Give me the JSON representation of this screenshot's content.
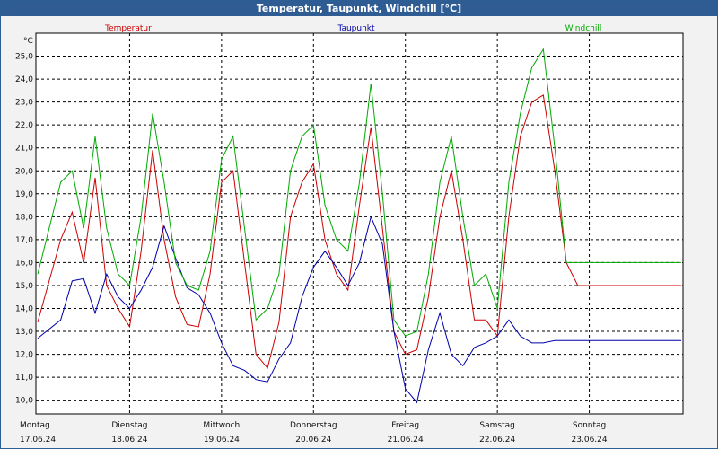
{
  "window": {
    "title": "Temperatur, Taupunkt, Windchill [°C]"
  },
  "chart_data": {
    "type": "line",
    "title": "Temperatur, Taupunkt, Windchill [°C]",
    "unit": "°C",
    "ylim": [
      9.4,
      26.0
    ],
    "yticks": [
      "10,0",
      "11,0",
      "12,0",
      "13,0",
      "14,0",
      "15,0",
      "16,0",
      "17,0",
      "18,0",
      "19,0",
      "20,0",
      "21,0",
      "22,0",
      "23,0",
      "24,0",
      "25,0"
    ],
    "grid": true,
    "days": [
      {
        "name": "Montag",
        "date": "17.06.24"
      },
      {
        "name": "Dienstag",
        "date": "18.06.24"
      },
      {
        "name": "Mittwoch",
        "date": "19.06.24"
      },
      {
        "name": "Donnerstag",
        "date": "20.06.24"
      },
      {
        "name": "Freitag",
        "date": "21.06.24"
      },
      {
        "name": "Samstag",
        "date": "22.06.24"
      },
      {
        "name": "Sonntag",
        "date": "23.06.24"
      }
    ],
    "x_hours": [
      0,
      6,
      9,
      12,
      15,
      18,
      21,
      24,
      27,
      30,
      33,
      36,
      39,
      42,
      45,
      48,
      51,
      54,
      57,
      60,
      63,
      66,
      69,
      72,
      75,
      78,
      81,
      84,
      87,
      90,
      93,
      96,
      99,
      102,
      105,
      108,
      111,
      114,
      117,
      120,
      123,
      126,
      129,
      132,
      135,
      138,
      141,
      144,
      147,
      150,
      153,
      156,
      159,
      162,
      165,
      168
    ],
    "series": [
      {
        "name": "Temperatur",
        "color": "#cc0000",
        "values": [
          13.4,
          17.0,
          18.2,
          16.0,
          19.7,
          15.0,
          14.0,
          13.2,
          16.5,
          20.9,
          17.0,
          14.5,
          13.3,
          13.2,
          15.5,
          19.5,
          20.0,
          16.0,
          12.0,
          11.4,
          13.4,
          18.0,
          19.5,
          20.3,
          17.0,
          15.5,
          14.8,
          18.5,
          21.9,
          17.5,
          13.0,
          12.0,
          12.2,
          14.5,
          18.0,
          20.0,
          17.0,
          13.5,
          13.5,
          12.8,
          18.0,
          21.5,
          23.0,
          23.3,
          20.0,
          16.0,
          15.0,
          15.0,
          15.0,
          15.0,
          15.0,
          15.0,
          15.0,
          15.0,
          15.0,
          15.0
        ]
      },
      {
        "name": "Taupunkt",
        "color": "#0000aa",
        "values": [
          12.7,
          13.5,
          15.2,
          15.3,
          13.8,
          15.5,
          14.5,
          14.0,
          14.8,
          15.8,
          17.6,
          16.2,
          14.9,
          14.6,
          13.8,
          12.5,
          11.5,
          11.3,
          10.9,
          10.8,
          11.8,
          12.5,
          14.5,
          15.8,
          16.5,
          15.8,
          15.0,
          16.0,
          18.0,
          16.8,
          13.0,
          10.5,
          9.9,
          12.2,
          13.8,
          12.0,
          11.5,
          12.3,
          12.5,
          12.8,
          13.5,
          12.8,
          12.5,
          12.5,
          12.6,
          12.6,
          12.6,
          12.6,
          12.6,
          12.6,
          12.6,
          12.6,
          12.6,
          12.6,
          12.6,
          12.6
        ]
      },
      {
        "name": "Windchill",
        "color": "#00aa00",
        "values": [
          15.5,
          19.5,
          20.0,
          17.5,
          21.5,
          17.5,
          15.5,
          15.0,
          18.0,
          22.5,
          19.5,
          16.0,
          15.0,
          14.8,
          16.5,
          20.5,
          21.5,
          17.5,
          13.5,
          14.0,
          15.5,
          20.0,
          21.5,
          22.0,
          18.5,
          17.0,
          16.5,
          19.5,
          23.8,
          19.0,
          13.5,
          12.8,
          13.0,
          15.5,
          19.5,
          21.5,
          18.0,
          15.0,
          15.5,
          14.0,
          19.5,
          22.5,
          24.5,
          25.3,
          21.0,
          16.0,
          16.0,
          16.0,
          16.0,
          16.0,
          16.0,
          16.0,
          16.0,
          16.0,
          16.0,
          16.0
        ]
      }
    ]
  }
}
